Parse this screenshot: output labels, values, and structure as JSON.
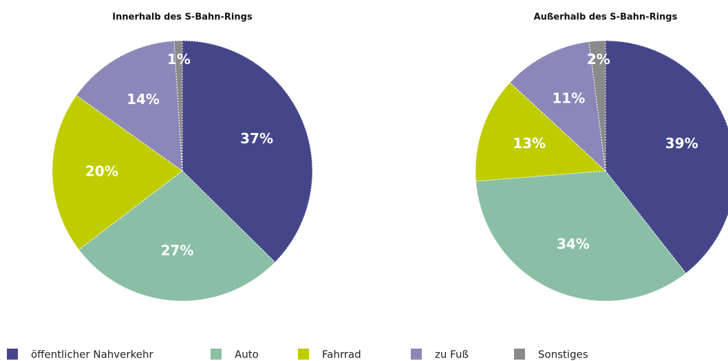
{
  "chart_data": [
    {
      "type": "pie",
      "title": "Innerhalb des S-Bahn-Rings",
      "categories": [
        "öffentlicher Nahverkehr",
        "Auto",
        "Fahrrad",
        "zu Fuß",
        "Sonstiges"
      ],
      "values": [
        37,
        27,
        20,
        14,
        1
      ],
      "value_labels": [
        "37%",
        "27%",
        "20%",
        "14%",
        "1%"
      ],
      "colors": [
        "#45468a",
        "#8bbfa5",
        "#bfcc00",
        "#8b87b8",
        "#8a8a8a"
      ]
    },
    {
      "type": "pie",
      "title": "Außerhalb des S-Bahn-Rings",
      "categories": [
        "öffentlicher Nahverkehr",
        "Auto",
        "Fahrrad",
        "zu Fuß",
        "Sonstiges"
      ],
      "values": [
        39,
        34,
        13,
        11,
        2
      ],
      "value_labels": [
        "39%",
        "34%",
        "13%",
        "11%",
        "2%"
      ],
      "colors": [
        "#45468a",
        "#8bbfa5",
        "#bfcc00",
        "#8b87b8",
        "#8a8a8a"
      ]
    }
  ]
}
